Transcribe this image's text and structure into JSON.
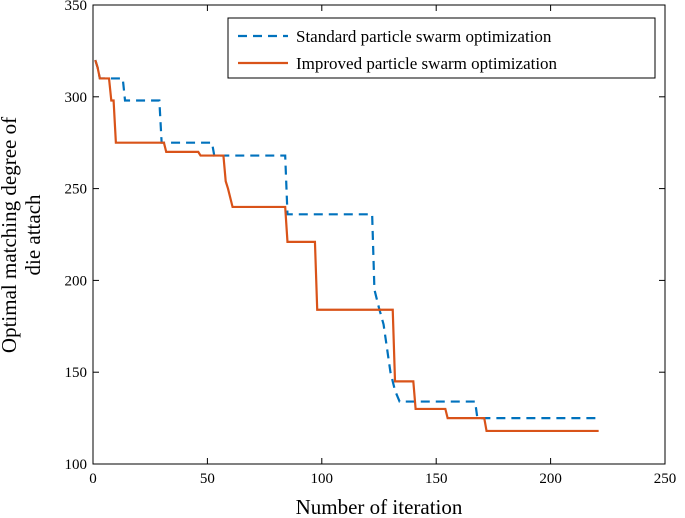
{
  "chart_data": {
    "type": "line",
    "xlabel": "Number of iteration",
    "ylabel": "Optimal matching degree of die attach",
    "ylabel_lines": [
      "Optimal matching degree of",
      "die attach"
    ],
    "xlim": [
      0,
      250
    ],
    "ylim": [
      100,
      350
    ],
    "xticks": [
      0,
      50,
      100,
      150,
      200,
      250
    ],
    "yticks": [
      100,
      150,
      200,
      250,
      300,
      350
    ],
    "grid": false,
    "legend_position": "top-right",
    "series": [
      {
        "name": "Standard particle swarm optimization",
        "color": "#0072BD",
        "dash": "dashed",
        "points": [
          [
            1,
            320
          ],
          [
            2,
            316
          ],
          [
            3,
            310
          ],
          [
            13,
            310
          ],
          [
            14,
            298
          ],
          [
            29,
            298
          ],
          [
            30,
            275
          ],
          [
            52,
            275
          ],
          [
            53,
            268
          ],
          [
            84,
            268
          ],
          [
            85,
            236
          ],
          [
            122,
            236
          ],
          [
            123,
            195
          ],
          [
            125,
            185
          ],
          [
            127,
            176
          ],
          [
            130,
            150
          ],
          [
            132,
            140
          ],
          [
            134,
            134
          ],
          [
            167,
            134
          ],
          [
            168,
            125
          ],
          [
            221,
            125
          ]
        ]
      },
      {
        "name": "Improved particle swarm optimization",
        "color": "#D95319",
        "dash": "solid",
        "points": [
          [
            1,
            320
          ],
          [
            2,
            316
          ],
          [
            3,
            310
          ],
          [
            7,
            310
          ],
          [
            8,
            298
          ],
          [
            9,
            298
          ],
          [
            10,
            275
          ],
          [
            31,
            275
          ],
          [
            32,
            270
          ],
          [
            46,
            270
          ],
          [
            47,
            268
          ],
          [
            57,
            268
          ],
          [
            58,
            254
          ],
          [
            59,
            250
          ],
          [
            61,
            240
          ],
          [
            84,
            240
          ],
          [
            85,
            221
          ],
          [
            97,
            221
          ],
          [
            98,
            184
          ],
          [
            131,
            184
          ],
          [
            132,
            145
          ],
          [
            140,
            145
          ],
          [
            141,
            130
          ],
          [
            154,
            130
          ],
          [
            155,
            125
          ],
          [
            171,
            125
          ],
          [
            172,
            118
          ],
          [
            221,
            118
          ]
        ]
      }
    ]
  }
}
